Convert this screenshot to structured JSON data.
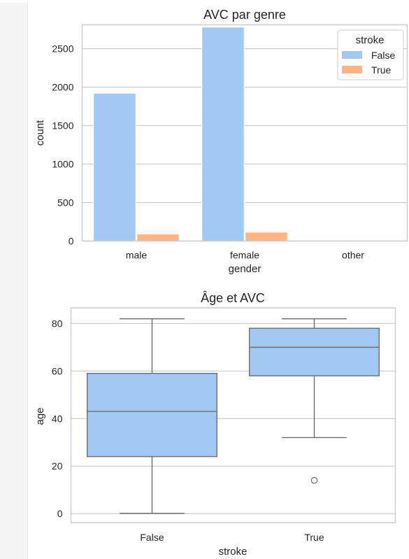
{
  "chart_data": [
    {
      "type": "bar",
      "title": "AVC par genre",
      "xlabel": "gender",
      "ylabel": "count",
      "categories": [
        "male",
        "female",
        "other"
      ],
      "series": [
        {
          "name": "False",
          "values": [
            1920,
            2780,
            0
          ],
          "color": "#a1c9f4"
        },
        {
          "name": "True",
          "values": [
            90,
            115,
            0
          ],
          "color": "#ffb482"
        }
      ],
      "ylim": [
        0,
        2810
      ],
      "yticks": [
        0,
        500,
        1000,
        1500,
        2000,
        2500
      ],
      "grid": true,
      "legend": {
        "title": "stroke",
        "position": "top-right"
      }
    },
    {
      "type": "boxplot",
      "title": "Âge et AVC",
      "xlabel": "stroke",
      "ylabel": "age",
      "categories": [
        "False",
        "True"
      ],
      "boxes": [
        {
          "min": 0.1,
          "q1": 24,
          "median": 43,
          "q3": 59,
          "max": 82,
          "outliers": []
        },
        {
          "min": 32,
          "q1": 58,
          "median": 70,
          "q3": 78,
          "max": 82,
          "outliers": [
            14
          ]
        }
      ],
      "color": "#a1c9f4",
      "ylim": [
        -3.8,
        86.6
      ],
      "yticks": [
        0,
        20,
        40,
        60,
        80
      ],
      "grid": true
    }
  ]
}
